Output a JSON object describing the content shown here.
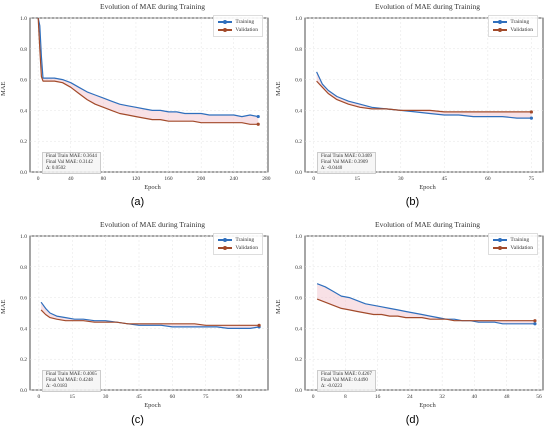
{
  "colors": {
    "training": "#2f6fbd",
    "validation": "#a24a2a",
    "fill": "#f2c9d2",
    "grid": "#e4e4e4"
  },
  "chart_data": [
    {
      "type": "line",
      "panel": "(a)",
      "title": "Evolution of MAE during Training",
      "xlabel": "Epoch",
      "ylabel": "MAE",
      "xlim": [
        -10,
        282
      ],
      "ylim": [
        0.0,
        1.0
      ],
      "xticks": [
        0,
        40,
        80,
        120,
        160,
        200,
        240,
        280
      ],
      "yticks": [
        0.0,
        0.2,
        0.4,
        0.6,
        0.8,
        1.0
      ],
      "legend": "top-right",
      "grid": true,
      "annotation": [
        "Final Train MAE: 0.3644",
        "Final Val MAE: 0.3142",
        "Δ: 0.0502"
      ],
      "series": [
        {
          "name": "Training",
          "x": [
            0,
            2,
            4,
            6,
            10,
            20,
            30,
            40,
            50,
            60,
            70,
            80,
            90,
            100,
            110,
            120,
            130,
            140,
            150,
            160,
            170,
            180,
            190,
            200,
            210,
            220,
            230,
            240,
            250,
            260,
            270
          ],
          "y": [
            1.0,
            0.95,
            0.75,
            0.61,
            0.61,
            0.61,
            0.6,
            0.58,
            0.55,
            0.52,
            0.5,
            0.48,
            0.46,
            0.44,
            0.43,
            0.42,
            0.41,
            0.4,
            0.4,
            0.39,
            0.39,
            0.38,
            0.38,
            0.38,
            0.37,
            0.37,
            0.37,
            0.37,
            0.36,
            0.37,
            0.36
          ]
        },
        {
          "name": "Validation",
          "x": [
            0,
            2,
            4,
            6,
            10,
            20,
            30,
            40,
            50,
            60,
            70,
            80,
            90,
            100,
            110,
            120,
            130,
            140,
            150,
            160,
            170,
            180,
            190,
            200,
            210,
            220,
            230,
            240,
            250,
            260,
            270
          ],
          "y": [
            1.0,
            0.8,
            0.62,
            0.59,
            0.59,
            0.59,
            0.58,
            0.55,
            0.51,
            0.47,
            0.44,
            0.42,
            0.4,
            0.38,
            0.37,
            0.36,
            0.35,
            0.34,
            0.34,
            0.33,
            0.33,
            0.33,
            0.33,
            0.32,
            0.32,
            0.32,
            0.32,
            0.32,
            0.32,
            0.31,
            0.31
          ]
        }
      ]
    },
    {
      "type": "line",
      "panel": "(b)",
      "title": "Evolution of MAE during Training",
      "xlabel": "Epoch",
      "ylabel": "MAE",
      "xlim": [
        -3,
        79
      ],
      "ylim": [
        0.0,
        1.0
      ],
      "xticks": [
        0,
        15,
        30,
        45,
        60,
        75
      ],
      "yticks": [
        0.0,
        0.2,
        0.4,
        0.6,
        0.8,
        1.0
      ],
      "legend": "top-right",
      "grid": true,
      "annotation": [
        "Final Train MAE: 0.3469",
        "Final Val MAE: 0.3909",
        "Δ: -0.0440"
      ],
      "series": [
        {
          "name": "Training",
          "x": [
            1,
            3,
            5,
            8,
            12,
            16,
            20,
            25,
            30,
            35,
            40,
            45,
            50,
            55,
            60,
            65,
            70,
            75
          ],
          "y": [
            0.65,
            0.57,
            0.53,
            0.49,
            0.46,
            0.44,
            0.42,
            0.41,
            0.4,
            0.39,
            0.38,
            0.37,
            0.37,
            0.36,
            0.36,
            0.36,
            0.35,
            0.35
          ]
        },
        {
          "name": "Validation",
          "x": [
            1,
            3,
            5,
            8,
            12,
            16,
            20,
            25,
            30,
            35,
            40,
            45,
            50,
            55,
            60,
            65,
            70,
            75
          ],
          "y": [
            0.59,
            0.55,
            0.51,
            0.47,
            0.44,
            0.42,
            0.41,
            0.41,
            0.4,
            0.4,
            0.4,
            0.39,
            0.39,
            0.39,
            0.39,
            0.39,
            0.39,
            0.39
          ]
        }
      ]
    },
    {
      "type": "line",
      "panel": "(c)",
      "title": "Evolution of MAE during Training",
      "xlabel": "Epoch",
      "ylabel": "MAE",
      "xlim": [
        -4,
        103
      ],
      "ylim": [
        0.0,
        1.0
      ],
      "xticks": [
        0,
        15,
        30,
        45,
        60,
        75,
        90
      ],
      "yticks": [
        0.0,
        0.2,
        0.4,
        0.6,
        0.8,
        1.0
      ],
      "legend": "top-right",
      "grid": true,
      "annotation": [
        "Final Train MAE: 0.4065",
        "Final Val MAE: 0.4248",
        "Δ: -0.0183"
      ],
      "series": [
        {
          "name": "Training",
          "x": [
            1,
            3,
            5,
            8,
            12,
            16,
            20,
            25,
            30,
            35,
            40,
            45,
            50,
            55,
            60,
            65,
            70,
            75,
            80,
            85,
            90,
            95,
            99
          ],
          "y": [
            0.57,
            0.53,
            0.5,
            0.48,
            0.47,
            0.46,
            0.46,
            0.45,
            0.45,
            0.44,
            0.43,
            0.42,
            0.42,
            0.42,
            0.41,
            0.41,
            0.41,
            0.41,
            0.41,
            0.4,
            0.4,
            0.4,
            0.41
          ]
        },
        {
          "name": "Validation",
          "x": [
            1,
            3,
            5,
            8,
            12,
            16,
            20,
            25,
            30,
            35,
            40,
            45,
            50,
            55,
            60,
            65,
            70,
            75,
            80,
            85,
            90,
            95,
            99
          ],
          "y": [
            0.52,
            0.49,
            0.47,
            0.46,
            0.45,
            0.45,
            0.45,
            0.44,
            0.44,
            0.44,
            0.43,
            0.43,
            0.43,
            0.43,
            0.43,
            0.43,
            0.43,
            0.42,
            0.42,
            0.42,
            0.42,
            0.42,
            0.42
          ]
        }
      ]
    },
    {
      "type": "line",
      "panel": "(d)",
      "title": "Evolution of MAE during Training",
      "xlabel": "Epoch",
      "ylabel": "MAE",
      "xlim": [
        -2,
        57
      ],
      "ylim": [
        0.0,
        1.0
      ],
      "xticks": [
        0,
        8,
        16,
        24,
        32,
        40,
        48,
        56
      ],
      "yticks": [
        0.0,
        0.2,
        0.4,
        0.6,
        0.8,
        1.0
      ],
      "legend": "top-right",
      "grid": true,
      "annotation": [
        "Final Train MAE: 0.4267",
        "Final Val MAE: 0.4490",
        "Δ: -0.0223"
      ],
      "series": [
        {
          "name": "Training",
          "x": [
            1,
            3,
            5,
            7,
            9,
            11,
            13,
            15,
            17,
            19,
            21,
            23,
            25,
            27,
            29,
            31,
            33,
            35,
            37,
            39,
            41,
            43,
            45,
            47,
            49,
            51,
            53,
            55
          ],
          "y": [
            0.69,
            0.67,
            0.64,
            0.61,
            0.6,
            0.58,
            0.56,
            0.55,
            0.54,
            0.53,
            0.52,
            0.51,
            0.5,
            0.49,
            0.48,
            0.47,
            0.46,
            0.46,
            0.45,
            0.45,
            0.44,
            0.44,
            0.44,
            0.43,
            0.43,
            0.43,
            0.43,
            0.43
          ]
        },
        {
          "name": "Validation",
          "x": [
            1,
            3,
            5,
            7,
            9,
            11,
            13,
            15,
            17,
            19,
            21,
            23,
            25,
            27,
            29,
            31,
            33,
            35,
            37,
            39,
            41,
            43,
            45,
            47,
            49,
            51,
            53,
            55
          ],
          "y": [
            0.59,
            0.57,
            0.55,
            0.53,
            0.52,
            0.51,
            0.5,
            0.49,
            0.49,
            0.48,
            0.48,
            0.47,
            0.47,
            0.47,
            0.46,
            0.46,
            0.46,
            0.45,
            0.45,
            0.45,
            0.45,
            0.45,
            0.45,
            0.45,
            0.45,
            0.45,
            0.45,
            0.45
          ]
        }
      ]
    }
  ]
}
